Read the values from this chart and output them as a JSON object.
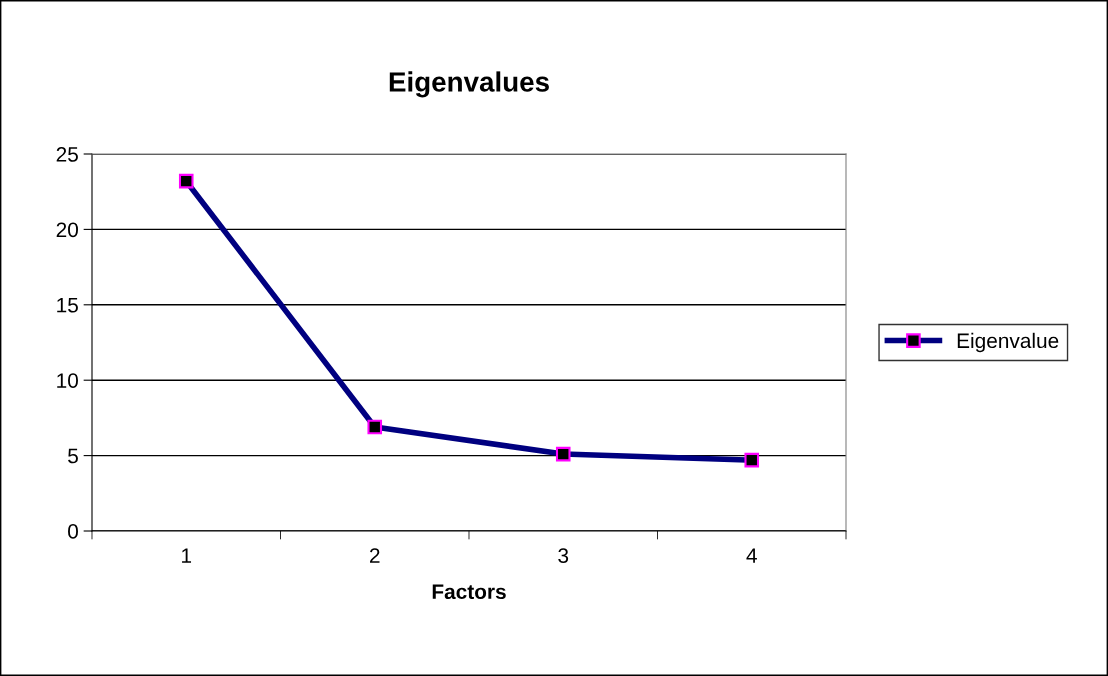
{
  "chart_data": {
    "type": "line",
    "title": "Eigenvalues",
    "xlabel": "Factors",
    "categories": [
      "1",
      "2",
      "3",
      "4"
    ],
    "series": [
      {
        "name": "Eigenvalue",
        "color": "#000080",
        "values": [
          23.2,
          6.9,
          5.1,
          4.7
        ]
      }
    ],
    "ylim": [
      0,
      25
    ],
    "yticks": [
      0,
      5,
      10,
      15,
      20,
      25
    ],
    "grid": "y",
    "legend": "right",
    "marker": "square",
    "line_style": "solid"
  }
}
